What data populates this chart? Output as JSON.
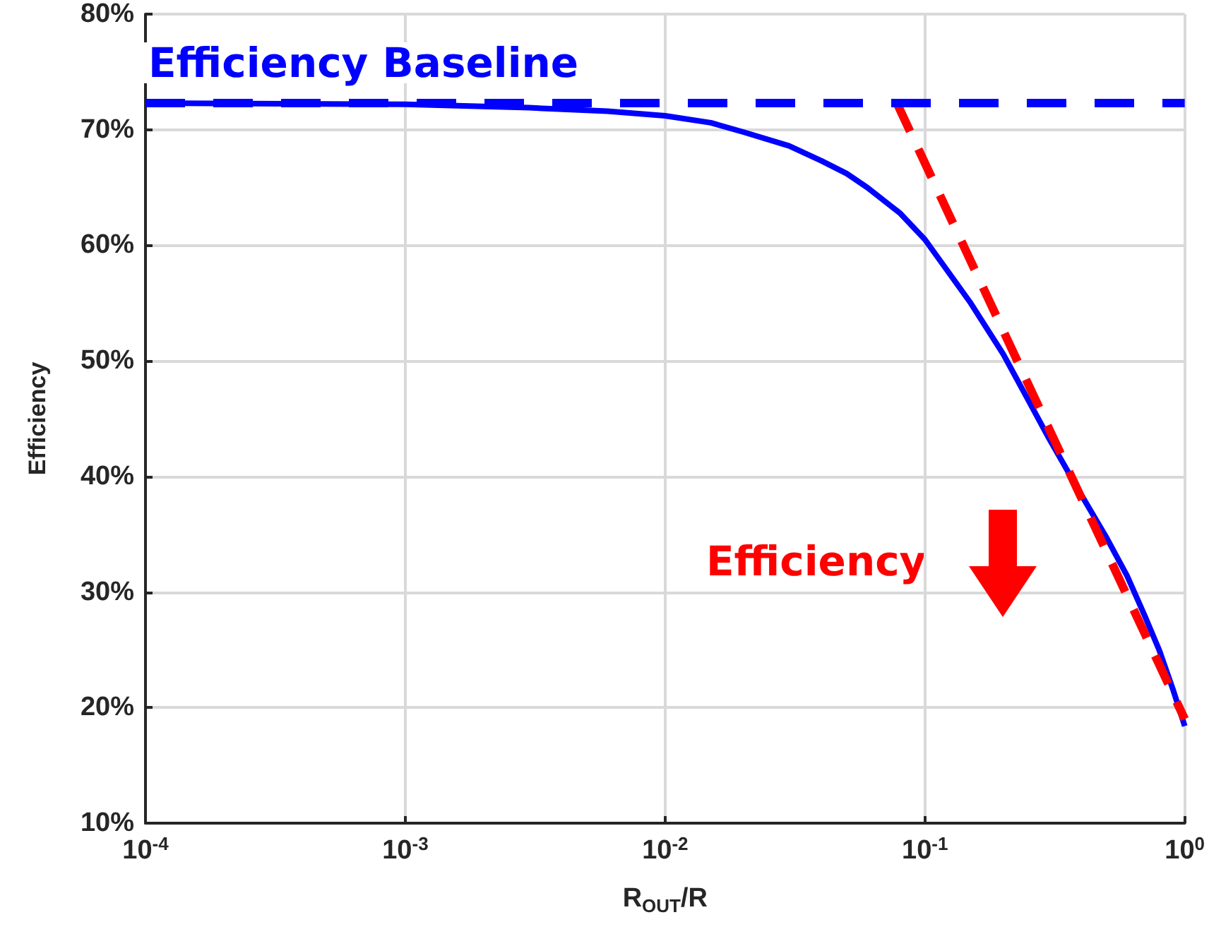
{
  "chart_data": {
    "type": "line",
    "xlabel": "R$_{OUT}$/R",
    "ylabel": "Efficiency",
    "log": "x",
    "xlim": [
      0.0001,
      1
    ],
    "xticks": [
      {
        "value": 0.0001,
        "label": "10$^{-4}$"
      },
      {
        "value": 0.001,
        "label": "10$^{-3}$"
      },
      {
        "value": 0.01,
        "label": "10$^{-2}$"
      },
      {
        "value": 0.1,
        "label": "10$^{-1}$"
      },
      {
        "value": 1,
        "label": "10$^{0}$"
      }
    ],
    "ylim": [
      10,
      80
    ],
    "yticks": [
      {
        "value": 10,
        "label": "10%"
      },
      {
        "value": 20,
        "label": "20%"
      },
      {
        "value": 30,
        "label": "30%"
      },
      {
        "value": 40,
        "label": "40%"
      },
      {
        "value": 50,
        "label": "50%"
      },
      {
        "value": 60,
        "label": "60%"
      },
      {
        "value": 70,
        "label": "70%"
      },
      {
        "value": 80,
        "label": "80%"
      }
    ],
    "grid": true,
    "marker": "none",
    "series": [
      {
        "color": "#0000ff",
        "line_style": "solid",
        "x": [
          0.0001,
          0.001,
          0.003,
          0.006,
          0.01,
          0.015,
          0.02,
          0.03,
          0.04,
          0.05,
          0.06,
          0.08,
          0.1,
          0.15,
          0.2,
          0.25,
          0.3,
          0.4,
          0.5,
          0.6,
          0.7,
          0.8,
          0.9,
          1
        ],
        "values": [
          72.3,
          72.2,
          71.9,
          71.6,
          71.2,
          70.6,
          69.8,
          68.6,
          67.3,
          66.2,
          65.0,
          62.8,
          60.5,
          55,
          50.6,
          46.6,
          43.3,
          38.4,
          34.7,
          31.4,
          28,
          24.9,
          21.6,
          18.4
        ]
      },
      {
        "color": "#ff0000",
        "line_style": "dashed",
        "x": [
          0.078,
          1
        ],
        "values": [
          72.3,
          19
        ]
      }
    ],
    "ref_lines": [
      {
        "axis": "y",
        "value": 72.3,
        "label": "Efficiency Baseline",
        "color": "#0000ff",
        "line_style": "dashed"
      }
    ],
    "annotations": [
      "Efficiency"
    ]
  }
}
